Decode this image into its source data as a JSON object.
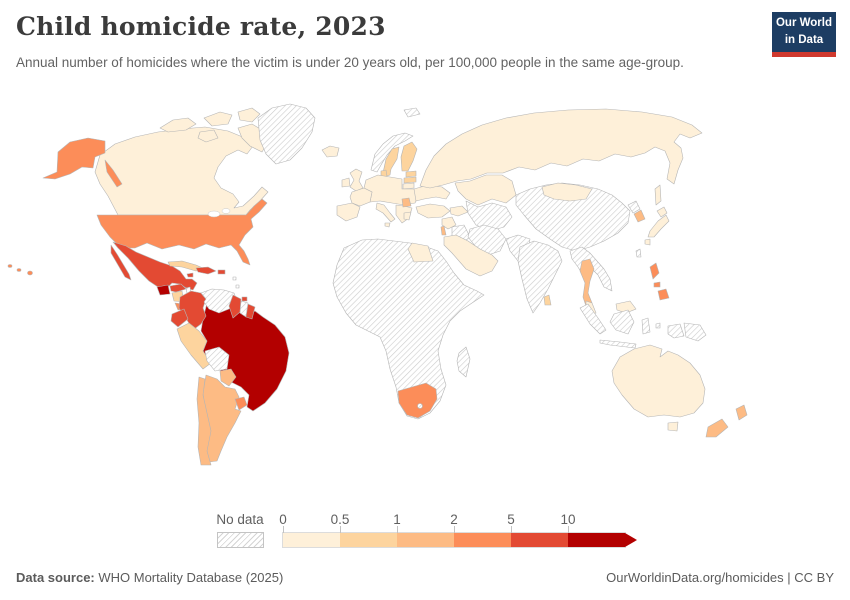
{
  "header": {
    "title": "Child homicide rate, 2023",
    "subtitle": "Annual number of homicides where the victim is under 20 years old, per 100,000 people in the same age-group.",
    "logo": {
      "line1": "Our World",
      "line2": "in Data"
    }
  },
  "legend": {
    "no_data_label": "No data",
    "tick_labels": [
      "0",
      "0.5",
      "1",
      "2",
      "5",
      "10"
    ],
    "colors": [
      "#FEF0D9",
      "#FDD49E",
      "#FDBB84",
      "#FC8D59",
      "#E34A33",
      "#B30000"
    ]
  },
  "footer": {
    "source_bold": "Data source:",
    "source_rest": " WHO Mortality Database (2025)",
    "credit": "OurWorldinData.org/homicides | CC BY"
  },
  "chart_data": {
    "type": "choropleth",
    "title": "Child homicide rate, 2023",
    "unit": "homicides per 100,000 people under 20 years old",
    "year": "2023",
    "bin_labels": [
      "0–0.5",
      "0.5–1",
      "1–2",
      "2–5",
      "5–10",
      ">10"
    ],
    "no_data": "no-data",
    "countries": {
      "canada": "0–0.5",
      "greenland": "no-data",
      "iceland": "0–0.5",
      "usa": "2–5",
      "mexico": "5–10",
      "belize": "no-data",
      "guatemala": ">10",
      "honduras": "5–10",
      "nicaragua": "0.5–1",
      "costa-rica": "2–5",
      "panama": "5–10",
      "cuba": "0.5–1",
      "jamaica": "5–10",
      "hispaniola": "5–10",
      "puerto-rico": "5–10",
      "lesser-antilles": "no-data",
      "trinidad-and-tobago": "5–10",
      "colombia": "5–10",
      "venezuela": "no-data",
      "guyana": "5–10",
      "suriname": "no-data",
      "french-guiana": "5–10",
      "ecuador": "5–10",
      "peru": "0.5–1",
      "brazil": ">10",
      "bolivia": "no-data",
      "paraguay": "1–2",
      "uruguay": "2–5",
      "argentina": "1–2",
      "chile": "1–2",
      "united-kingdom": "0–0.5",
      "ireland": "0–0.5",
      "norway": "no-data",
      "svalbard": "no-data",
      "sweden": "0.5–1",
      "finland": "0.5–1",
      "denmark": "0.5–1",
      "estonia": "0.5–1",
      "latvia": "0.5–1",
      "lithuania": "0–0.5",
      "spain-portugal": "0–0.5",
      "france": "0–0.5",
      "central-europe": "0–0.5",
      "eastern-europe": "0–0.5",
      "balkans": "0–0.5",
      "serbia": "1–2",
      "italy": "0–0.5",
      "greece": "0–0.5",
      "russia": "0–0.5",
      "kazakhstan": "0–0.5",
      "central-asia": "no-data",
      "caucasus": "0–0.5",
      "turkey": "0–0.5",
      "levant": "0–0.5",
      "israel": "1–2",
      "iraq": "no-data",
      "iran": "no-data",
      "arabian-peninsula": "0–0.5",
      "afghanistan-pakistan": "no-data",
      "india": "no-data",
      "sri-lanka": "0.5–1",
      "china": "no-data",
      "mongolia": "0–0.5",
      "taiwan": "no-data",
      "north-korea": "no-data",
      "south-korea": "1–2",
      "japan": "0–0.5",
      "myanmar-indochina": "no-data",
      "thailand": "1–2",
      "malaysia": "0–0.5",
      "philippines": "2–5",
      "indonesia": "no-data",
      "papua-new-guinea": "no-data",
      "australia": "0–0.5",
      "new-zealand": "1–2",
      "africa": "no-data",
      "egypt": "0–0.5",
      "south-africa": "2–5",
      "lesotho": "no-data",
      "madagascar": "no-data"
    }
  }
}
